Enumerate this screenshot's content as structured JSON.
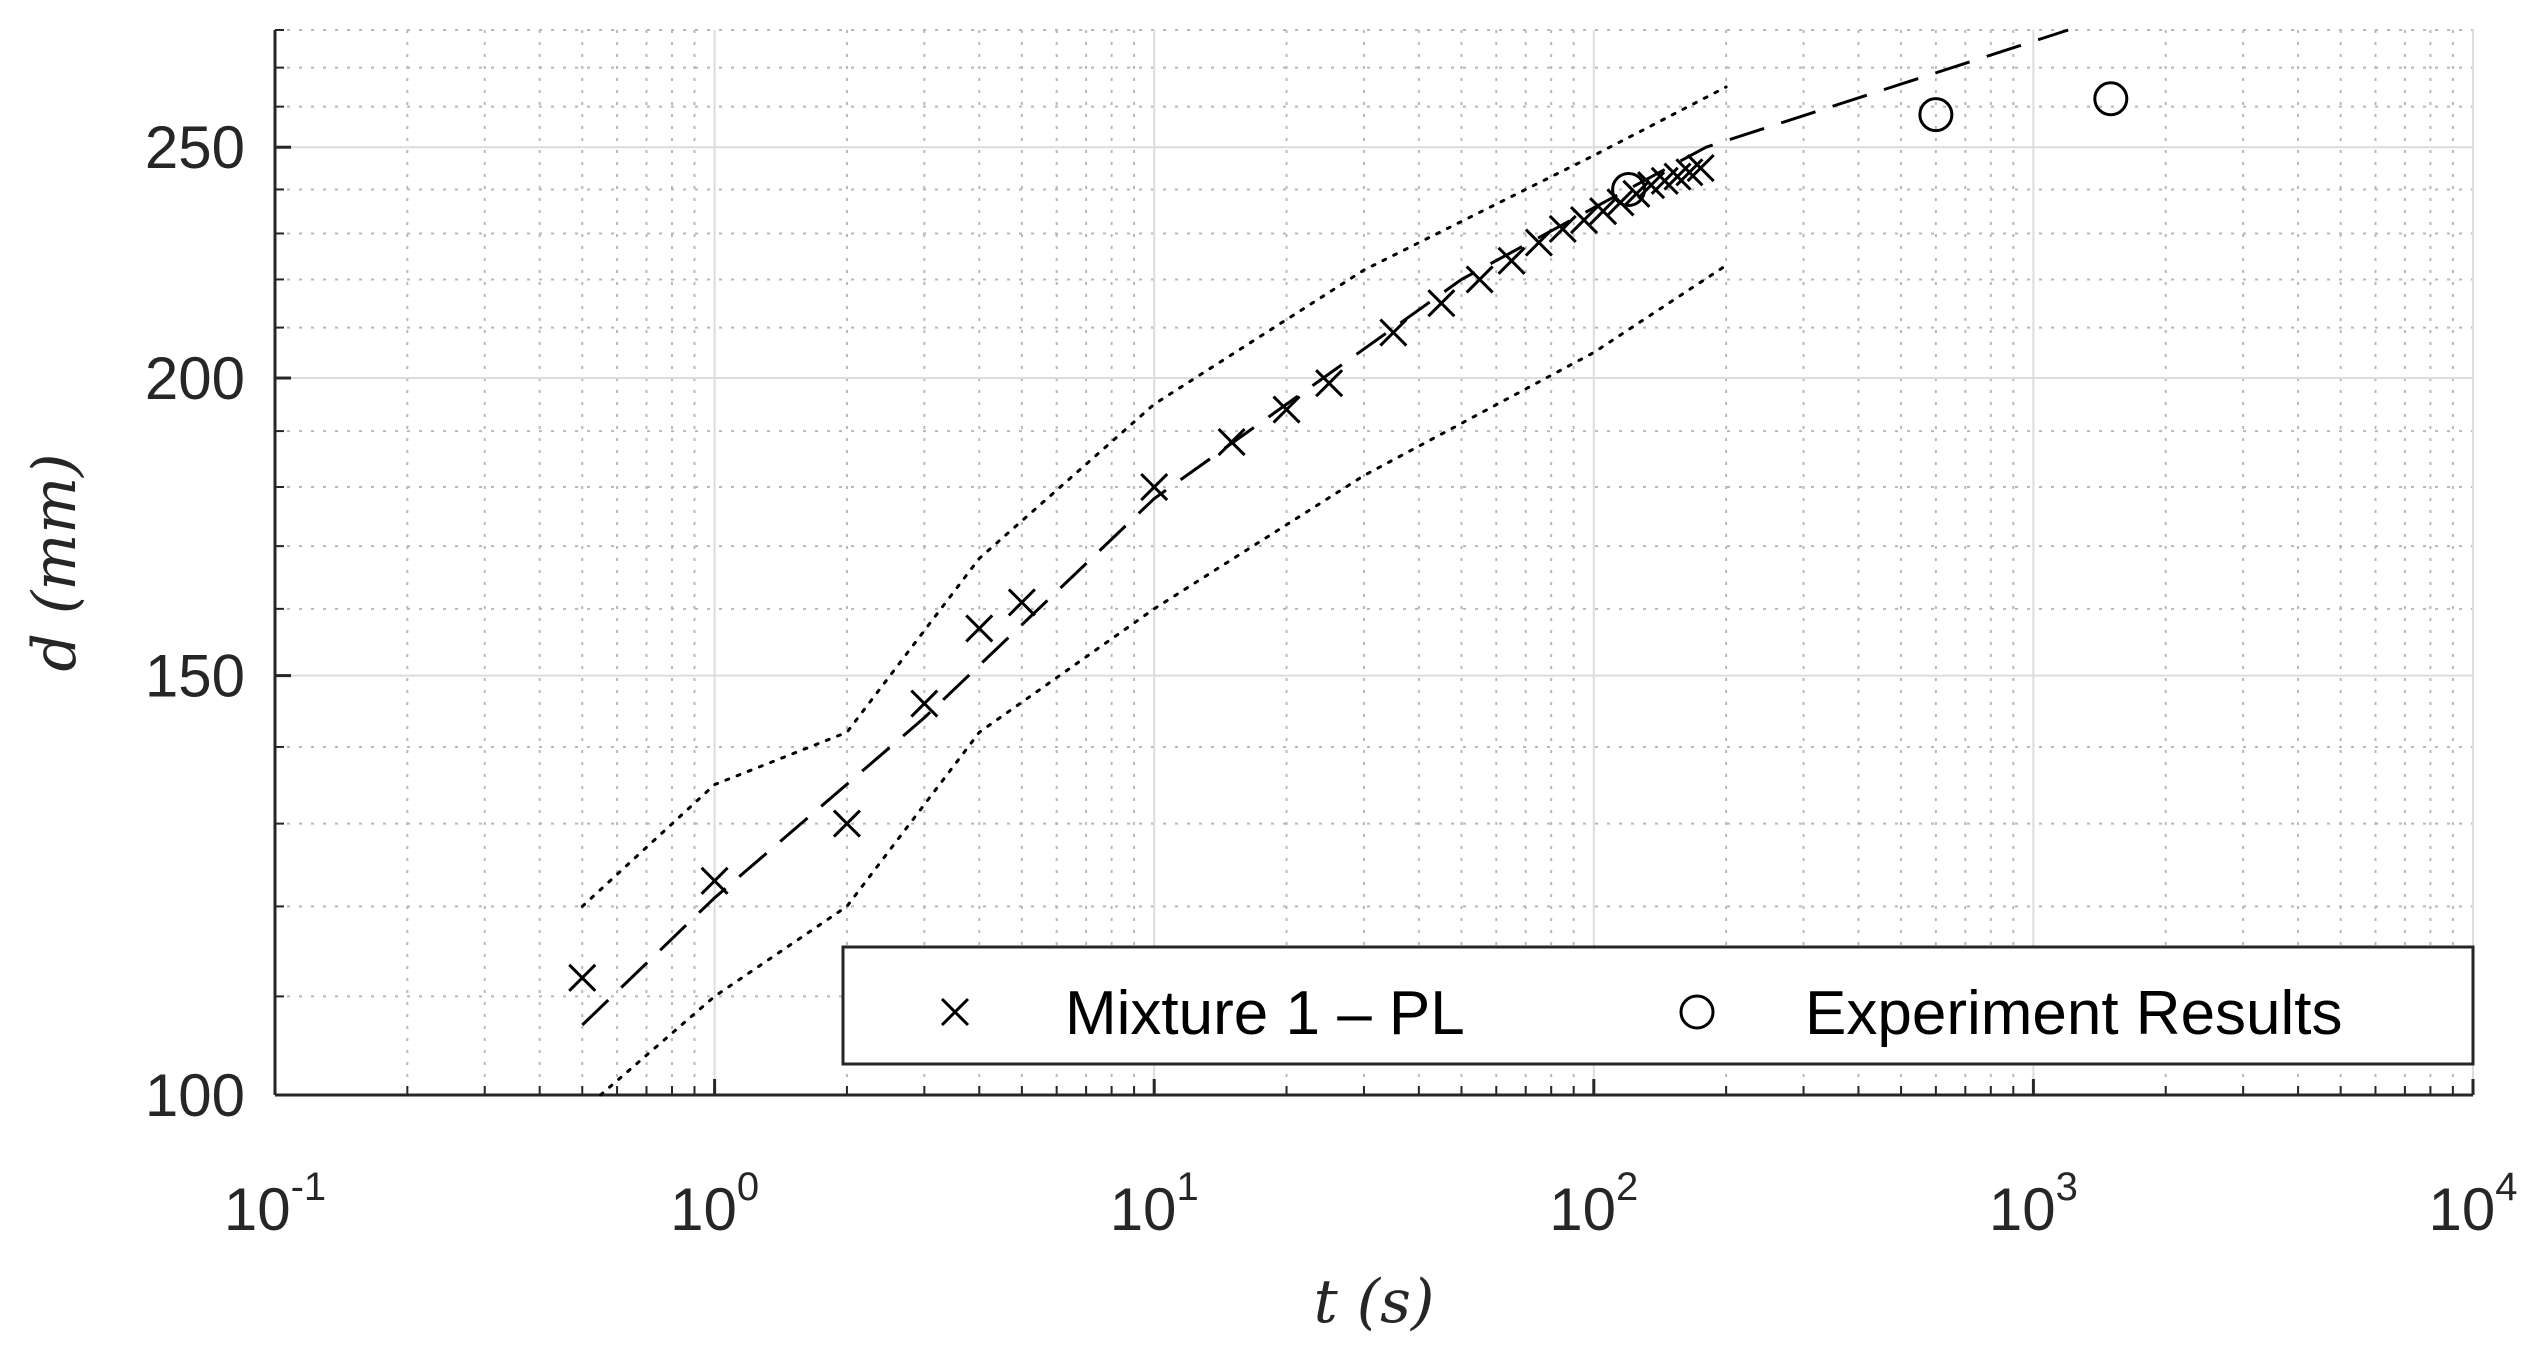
{
  "chart_data": {
    "type": "scatter",
    "x_scale": "log",
    "y_scale": "log",
    "xlim": [
      0.1,
      10000
    ],
    "ylim": [
      100,
      280
    ],
    "xlabel": "t (s)",
    "ylabel": "d (mm)",
    "x_ticks": [
      {
        "base": "10",
        "exp": "-1",
        "value": 0.1
      },
      {
        "base": "10",
        "exp": "0",
        "value": 1
      },
      {
        "base": "10",
        "exp": "1",
        "value": 10
      },
      {
        "base": "10",
        "exp": "2",
        "value": 100
      },
      {
        "base": "10",
        "exp": "3",
        "value": 1000
      },
      {
        "base": "10",
        "exp": "4",
        "value": 10000
      }
    ],
    "y_ticks": [
      {
        "label": "100",
        "value": 100
      },
      {
        "label": "150",
        "value": 150
      },
      {
        "label": "200",
        "value": 200
      },
      {
        "label": "250",
        "value": 250
      }
    ],
    "grid": true,
    "minor_grid": true,
    "legend_position": "bottom-right",
    "series": [
      {
        "name": "Mixture 1 – PL",
        "marker": "x",
        "color": "#000000",
        "points": [
          [
            0.5,
            112
          ],
          [
            1,
            123
          ],
          [
            2,
            130
          ],
          [
            3,
            146
          ],
          [
            4,
            157
          ],
          [
            5,
            161
          ],
          [
            10,
            180
          ],
          [
            15,
            188
          ],
          [
            20,
            194
          ],
          [
            25,
            199
          ],
          [
            35,
            209
          ],
          [
            45,
            215
          ],
          [
            55,
            220
          ],
          [
            65,
            224
          ],
          [
            75,
            228
          ],
          [
            85,
            231
          ],
          [
            95,
            233
          ],
          [
            105,
            235
          ],
          [
            115,
            237
          ],
          [
            125,
            239
          ],
          [
            135,
            241
          ],
          [
            145,
            242
          ],
          [
            155,
            243
          ],
          [
            165,
            244
          ],
          [
            175,
            245
          ]
        ]
      },
      {
        "name": "Experiment Results",
        "marker": "circle",
        "color": "#000000",
        "points": [
          [
            120,
            240
          ],
          [
            600,
            258
          ],
          [
            1500,
            262
          ]
        ]
      }
    ],
    "fit_line": {
      "style": "dashed",
      "points": [
        [
          0.5,
          107
        ],
        [
          1,
          121
        ],
        [
          3,
          144
        ],
        [
          10,
          178
        ],
        [
          50,
          220
        ],
        [
          180,
          250
        ],
        [
          1200,
          280
        ]
      ]
    },
    "upper_bound": {
      "style": "dotted",
      "points": [
        [
          0.5,
          120
        ],
        [
          1,
          135
        ],
        [
          2,
          142
        ],
        [
          4,
          168
        ],
        [
          10,
          195
        ],
        [
          30,
          222
        ],
        [
          100,
          248
        ],
        [
          200,
          265
        ]
      ]
    },
    "lower_bound": {
      "style": "dotted",
      "points": [
        [
          0.55,
          100
        ],
        [
          1,
          110
        ],
        [
          2,
          120
        ],
        [
          4,
          142
        ],
        [
          10,
          160
        ],
        [
          30,
          182
        ],
        [
          100,
          205
        ],
        [
          200,
          223
        ]
      ]
    }
  }
}
